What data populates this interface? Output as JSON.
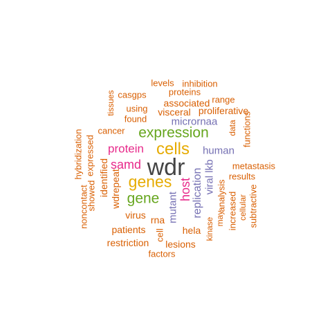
{
  "palette": {
    "orange": "#d95f02",
    "green": "#66a61e",
    "purple": "#7570b3",
    "magenta": "#e7298a",
    "gold": "#e6ab02",
    "dark": "#444444"
  },
  "words": [
    {
      "id": "wdr",
      "text": "wdr",
      "color": "dark",
      "orient": "h"
    },
    {
      "id": "cells",
      "text": "cells",
      "color": "gold",
      "orient": "h"
    },
    {
      "id": "genes",
      "text": "genes",
      "color": "gold",
      "orient": "h"
    },
    {
      "id": "expression",
      "text": "expression",
      "color": "green",
      "orient": "h"
    },
    {
      "id": "gene",
      "text": "gene",
      "color": "green",
      "orient": "h"
    },
    {
      "id": "protein",
      "text": "protein",
      "color": "magenta",
      "orient": "h"
    },
    {
      "id": "samd",
      "text": "samd",
      "color": "magenta",
      "orient": "h"
    },
    {
      "id": "host",
      "text": "host",
      "color": "magenta",
      "orient": "v"
    },
    {
      "id": "human",
      "text": "human",
      "color": "purple",
      "orient": "h"
    },
    {
      "id": "micrornaa",
      "text": "micrornaa",
      "color": "purple",
      "orient": "h"
    },
    {
      "id": "replication",
      "text": "replication",
      "color": "purple",
      "orient": "v"
    },
    {
      "id": "mutant",
      "text": "mutant",
      "color": "purple",
      "orient": "v"
    },
    {
      "id": "viral-lkb",
      "text": "viral lkb",
      "color": "purple",
      "orient": "v"
    },
    {
      "id": "levels",
      "text": "levels",
      "color": "orange",
      "orient": "h"
    },
    {
      "id": "inhibition",
      "text": "inhibition",
      "color": "orange",
      "orient": "h"
    },
    {
      "id": "casgps",
      "text": "casgps",
      "color": "orange",
      "orient": "h"
    },
    {
      "id": "proteins",
      "text": "proteins",
      "color": "orange",
      "orient": "h"
    },
    {
      "id": "range",
      "text": "range",
      "color": "orange",
      "orient": "h"
    },
    {
      "id": "tissues",
      "text": "tissues",
      "color": "orange",
      "orient": "v"
    },
    {
      "id": "associated",
      "text": "associated",
      "color": "orange",
      "orient": "h"
    },
    {
      "id": "using",
      "text": "using",
      "color": "orange",
      "orient": "h"
    },
    {
      "id": "visceral",
      "text": "visceral",
      "color": "orange",
      "orient": "h"
    },
    {
      "id": "proliferative",
      "text": "proliferative",
      "color": "orange",
      "orient": "h"
    },
    {
      "id": "found",
      "text": "found",
      "color": "orange",
      "orient": "h"
    },
    {
      "id": "data",
      "text": "data",
      "color": "orange",
      "orient": "v"
    },
    {
      "id": "functions",
      "text": "functions",
      "color": "orange",
      "orient": "v"
    },
    {
      "id": "cancer",
      "text": "cancer",
      "color": "orange",
      "orient": "h"
    },
    {
      "id": "hybridization",
      "text": "hybridization",
      "color": "orange",
      "orient": "v"
    },
    {
      "id": "expressed",
      "text": "expressed",
      "color": "orange",
      "orient": "v"
    },
    {
      "id": "identified",
      "text": "identified",
      "color": "orange",
      "orient": "v"
    },
    {
      "id": "wdrepeat",
      "text": "wdrepeat",
      "color": "orange",
      "orient": "v"
    },
    {
      "id": "showed",
      "text": "showed",
      "color": "orange",
      "orient": "v"
    },
    {
      "id": "noncontact",
      "text": "noncontact",
      "color": "orange",
      "orient": "v"
    },
    {
      "id": "metastasis",
      "text": "metastasis",
      "color": "orange",
      "orient": "h"
    },
    {
      "id": "results",
      "text": "results",
      "color": "orange",
      "orient": "h"
    },
    {
      "id": "analysis",
      "text": "analysis",
      "color": "orange",
      "orient": "v"
    },
    {
      "id": "may",
      "text": "may",
      "color": "orange",
      "orient": "v"
    },
    {
      "id": "increased",
      "text": "increased",
      "color": "orange",
      "orient": "v"
    },
    {
      "id": "cellular",
      "text": "cellular",
      "color": "orange",
      "orient": "v"
    },
    {
      "id": "subtractive",
      "text": "subtractive",
      "color": "orange",
      "orient": "v"
    },
    {
      "id": "kinase",
      "text": "kinase",
      "color": "orange",
      "orient": "v"
    },
    {
      "id": "virus",
      "text": "virus",
      "color": "orange",
      "orient": "h"
    },
    {
      "id": "rna",
      "text": "rna",
      "color": "orange",
      "orient": "h"
    },
    {
      "id": "patients",
      "text": "patients",
      "color": "orange",
      "orient": "h"
    },
    {
      "id": "cell",
      "text": "cell",
      "color": "orange",
      "orient": "v"
    },
    {
      "id": "hela",
      "text": "hela",
      "color": "orange",
      "orient": "h"
    },
    {
      "id": "restriction",
      "text": "restriction",
      "color": "orange",
      "orient": "h"
    },
    {
      "id": "lesions",
      "text": "lesions",
      "color": "orange",
      "orient": "h"
    },
    {
      "id": "factors",
      "text": "factors",
      "color": "orange",
      "orient": "h"
    }
  ]
}
